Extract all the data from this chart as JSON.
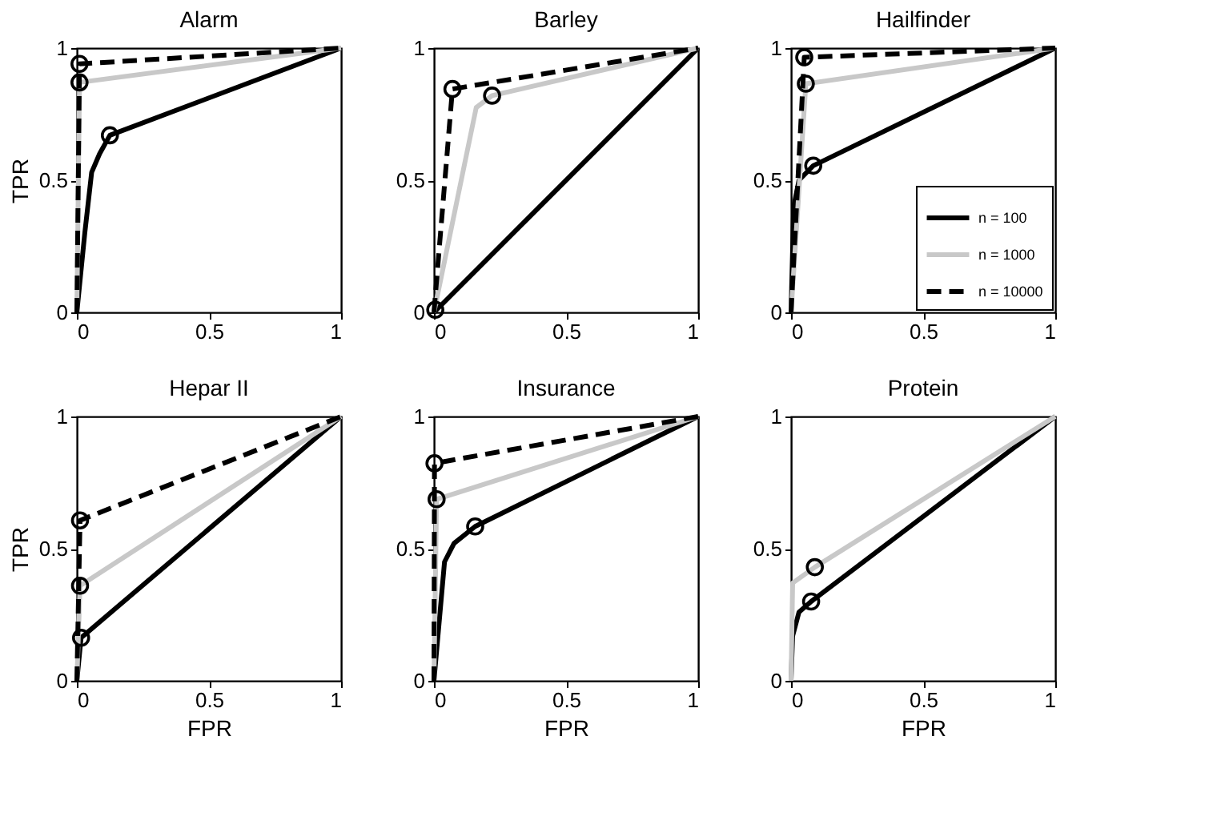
{
  "chart_data": [
    {
      "type": "line",
      "title": "Alarm",
      "ylabel": "TPR",
      "xlim": [
        0,
        1
      ],
      "ylim": [
        0,
        1
      ],
      "xticks": [
        0,
        0.5,
        1
      ],
      "yticks": [
        0,
        0.5,
        1
      ],
      "grid": false,
      "series": [
        {
          "color": "#000000",
          "line_style": "solid",
          "x": [
            0,
            0.03,
            0.056,
            0.086,
            0.125,
            1
          ],
          "values": [
            0,
            0.3,
            0.53,
            0.6,
            0.67,
            1
          ]
        },
        {
          "color": "#c8c8c8",
          "line_style": "solid",
          "x": [
            0,
            0.01,
            1
          ],
          "values": [
            0,
            0.87,
            1
          ]
        },
        {
          "color": "#000000",
          "line_style": "dashed",
          "x": [
            0,
            0.01,
            1
          ],
          "values": [
            0,
            0.94,
            1
          ]
        },
        {
          "type": "scatter",
          "marker": "circle",
          "color": "#000000",
          "x": [
            0.125,
            0.01,
            0.01
          ],
          "values": [
            0.67,
            0.87,
            0.94
          ]
        }
      ]
    },
    {
      "type": "line",
      "title": "Barley",
      "xlim": [
        0,
        1
      ],
      "ylim": [
        0,
        1
      ],
      "xticks": [
        0,
        0.5,
        1
      ],
      "yticks": [
        0,
        0.5,
        1
      ],
      "grid": false,
      "series": [
        {
          "color": "#000000",
          "line_style": "solid",
          "x": [
            0,
            1
          ],
          "values": [
            0,
            1
          ]
        },
        {
          "color": "#c8c8c8",
          "line_style": "solid",
          "x": [
            0,
            0.16,
            0.22,
            1
          ],
          "values": [
            0,
            0.775,
            0.82,
            1
          ]
        },
        {
          "color": "#000000",
          "line_style": "dashed",
          "x": [
            0,
            0.07,
            1
          ],
          "values": [
            0,
            0.845,
            1
          ]
        },
        {
          "type": "scatter",
          "marker": "circle",
          "color": "#000000",
          "x": [
            0.005,
            0.22,
            0.07
          ],
          "values": [
            0.01,
            0.82,
            0.845
          ]
        }
      ]
    },
    {
      "type": "line",
      "title": "Hailfinder",
      "xlim": [
        0,
        1
      ],
      "ylim": [
        0,
        1
      ],
      "xticks": [
        0,
        0.5,
        1
      ],
      "yticks": [
        0,
        0.5,
        1
      ],
      "grid": false,
      "legend": "bottom right",
      "series": [
        {
          "name": "n = 100",
          "color": "#000000",
          "line_style": "solid",
          "x": [
            0,
            0.01,
            0.03,
            0.084,
            1
          ],
          "values": [
            0,
            0.4,
            0.5,
            0.555,
            1
          ]
        },
        {
          "name": "n = 1000",
          "color": "#c8c8c8",
          "line_style": "solid",
          "x": [
            0,
            0.056,
            1
          ],
          "values": [
            0,
            0.865,
            1
          ]
        },
        {
          "name": "n = 10000",
          "color": "#000000",
          "line_style": "dashed",
          "x": [
            0,
            0.05,
            1
          ],
          "values": [
            0,
            0.965,
            1
          ]
        },
        {
          "type": "scatter",
          "marker": "circle",
          "color": "#000000",
          "x": [
            0.084,
            0.056,
            0.05
          ],
          "values": [
            0.555,
            0.865,
            0.965
          ]
        }
      ]
    },
    {
      "type": "line",
      "title": "Hepar II",
      "xlabel": "FPR",
      "ylabel": "TPR",
      "xlim": [
        0,
        1
      ],
      "ylim": [
        0,
        1
      ],
      "xticks": [
        0,
        0.5,
        1
      ],
      "yticks": [
        0,
        0.5,
        1
      ],
      "grid": false,
      "series": [
        {
          "color": "#000000",
          "line_style": "solid",
          "x": [
            0,
            0.016,
            1
          ],
          "values": [
            0,
            0.163,
            1
          ]
        },
        {
          "color": "#c8c8c8",
          "line_style": "solid",
          "x": [
            0,
            0.012,
            1
          ],
          "values": [
            0,
            0.36,
            1
          ]
        },
        {
          "color": "#000000",
          "line_style": "dashed",
          "x": [
            0,
            0.012,
            1
          ],
          "values": [
            0,
            0.607,
            1
          ]
        },
        {
          "type": "scatter",
          "marker": "circle",
          "color": "#000000",
          "x": [
            0.016,
            0.012,
            0.012
          ],
          "values": [
            0.163,
            0.36,
            0.607
          ]
        }
      ]
    },
    {
      "type": "line",
      "title": "Insurance",
      "xlabel": "FPR",
      "xlim": [
        0,
        1
      ],
      "ylim": [
        0,
        1
      ],
      "xticks": [
        0,
        0.5,
        1
      ],
      "yticks": [
        0,
        0.5,
        1
      ],
      "grid": false,
      "series": [
        {
          "color": "#000000",
          "line_style": "solid",
          "x": [
            0,
            0.04,
            0.076,
            0.156,
            1
          ],
          "values": [
            0,
            0.45,
            0.52,
            0.584,
            1
          ]
        },
        {
          "color": "#c8c8c8",
          "line_style": "solid",
          "x": [
            0,
            0.01,
            1
          ],
          "values": [
            0,
            0.687,
            1
          ]
        },
        {
          "color": "#000000",
          "line_style": "dashed",
          "x": [
            0,
            0.002,
            1
          ],
          "values": [
            0,
            0.823,
            1
          ]
        },
        {
          "type": "scatter",
          "marker": "circle",
          "color": "#000000",
          "x": [
            0.156,
            0.01,
            0.002
          ],
          "values": [
            0.584,
            0.687,
            0.823
          ]
        }
      ]
    },
    {
      "type": "line",
      "title": "Protein",
      "xlabel": "FPR",
      "xlim": [
        0,
        1
      ],
      "ylim": [
        0,
        1
      ],
      "xticks": [
        0,
        0.5,
        1
      ],
      "yticks": [
        0,
        0.5,
        1
      ],
      "grid": false,
      "series": [
        {
          "color": "#000000",
          "line_style": "solid",
          "x": [
            0,
            0.006,
            0.03,
            0.076,
            1
          ],
          "values": [
            0,
            0.17,
            0.26,
            0.3,
            1
          ]
        },
        {
          "color": "#c8c8c8",
          "line_style": "solid",
          "x": [
            0,
            0.006,
            0.09,
            1
          ],
          "values": [
            0,
            0.37,
            0.43,
            1
          ]
        },
        {
          "type": "scatter",
          "marker": "circle",
          "color": "#000000",
          "x": [
            0.076,
            0.09
          ],
          "values": [
            0.3,
            0.43
          ]
        }
      ]
    }
  ]
}
